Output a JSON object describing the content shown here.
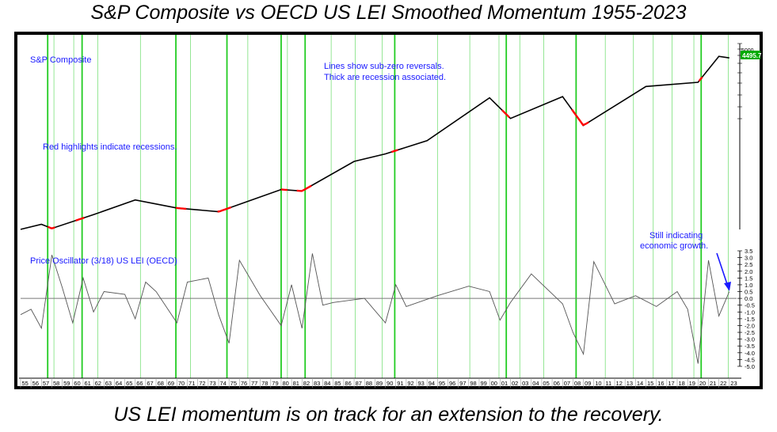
{
  "title": "S&P Composite vs OECD US LEI Smoothed Momentum 1955-2023",
  "caption": "US LEI momentum is on track for an extension to the recovery.",
  "annotations": {
    "top_label": "S&P Composite",
    "lines_note_1": "Lines show sub-zero reversals.",
    "lines_note_2": "Thick are recession associated.",
    "red_note": "Red highlights indicate recessions.",
    "osc_label": "Price Oscillator (3/18) US LEI (OECD)",
    "still_1": "Still indicating",
    "still_2": "economic growth.",
    "price_badge": "4495.7",
    "price_tick": "5000"
  },
  "colors": {
    "price": "#000000",
    "recession": "#ff0000",
    "oscillator": "#555555",
    "green_line": "#22cc22",
    "annotation": "#1a1aff",
    "badge": "#00aa00"
  },
  "chart_data": [
    {
      "type": "line",
      "title": "S&P Composite",
      "scale": "log",
      "x": [
        1955,
        1957,
        1958,
        1962,
        1966,
        1970,
        1974,
        1980,
        1982,
        1987,
        1990,
        1994,
        2000,
        2002,
        2007,
        2009,
        2015,
        2020,
        2022,
        2023
      ],
      "values": [
        40,
        46,
        41,
        60,
        90,
        72,
        65,
        120,
        115,
        260,
        320,
        460,
        1500,
        850,
        1550,
        700,
        2050,
        2300,
        4700,
        4495.7
      ],
      "recessions": [
        [
          1957.6,
          1958.3
        ],
        [
          1960.3,
          1961.1
        ],
        [
          1969.9,
          1970.9
        ],
        [
          1973.9,
          1975.2
        ],
        [
          1980.0,
          1980.6
        ],
        [
          1981.5,
          1982.9
        ],
        [
          1990.6,
          1991.2
        ],
        [
          2001.2,
          2001.9
        ],
        [
          2007.9,
          2009.5
        ],
        [
          2020.1,
          2020.4
        ]
      ],
      "last_value": "4495.7"
    },
    {
      "type": "line",
      "title": "Price Oscillator (3/18) US LEI (OECD)",
      "x": [
        1955,
        1956,
        1957,
        1958,
        1959,
        1960,
        1961,
        1962,
        1963,
        1965,
        1966,
        1967,
        1968,
        1970,
        1971,
        1973,
        1974,
        1975,
        1976,
        1978,
        1980,
        1981,
        1982,
        1983,
        1984,
        1985,
        1988,
        1990,
        1991,
        1992,
        1995,
        1998,
        2000,
        2001,
        2002,
        2004,
        2007,
        2008,
        2009,
        2010,
        2012,
        2014,
        2016,
        2018,
        2019,
        2020,
        2021,
        2022,
        2023
      ],
      "values": [
        -1.2,
        -0.8,
        -2.2,
        3.2,
        0.8,
        -1.8,
        1.5,
        -1.0,
        0.5,
        0.3,
        -1.5,
        1.2,
        0.5,
        -1.8,
        1.2,
        1.5,
        -1.2,
        -3.3,
        2.8,
        0.2,
        -2.0,
        1.0,
        -2.2,
        3.3,
        -0.5,
        -0.3,
        0.0,
        -1.8,
        1.0,
        -0.6,
        0.2,
        0.9,
        0.5,
        -1.6,
        -0.3,
        1.8,
        -0.4,
        -2.5,
        -4.1,
        2.7,
        -0.4,
        0.2,
        -0.6,
        0.5,
        -0.8,
        -4.8,
        2.8,
        -1.3,
        0.5
      ],
      "ylim": [
        -5.0,
        3.5
      ],
      "yticks": [
        "3.5",
        "3.0",
        "2.5",
        "2.0",
        "1.5",
        "1.0",
        "0.5",
        "0.0",
        "-0.5",
        "-1.0",
        "-1.5",
        "-2.0",
        "-2.5",
        "-3.0",
        "-3.5",
        "-4.0",
        "-4.5",
        "-5.0"
      ],
      "reversal_lines": [
        1957.6,
        1958.2,
        1960.1,
        1960.9,
        1962.4,
        1966.5,
        1969.9,
        1971.3,
        1974.8,
        1976.8,
        1980.0,
        1980.6,
        1982.3,
        1984.8,
        1987.1,
        1989.7,
        1990.9,
        1995.0,
        1998.1,
        2000.9,
        2001.6,
        2002.9,
        2005.2,
        2008.3,
        2011.1,
        2013.8,
        2015.7,
        2017.5,
        2019.6,
        2020.3,
        2022.9
      ],
      "thick_lines": [
        1957.6,
        1960.9,
        1969.9,
        1974.8,
        1980.0,
        1982.3,
        1990.9,
        2001.6,
        2008.3,
        2020.3
      ],
      "x_tick_labels": [
        "55",
        "56",
        "57",
        "58",
        "59",
        "60",
        "61",
        "62",
        "63",
        "64",
        "65",
        "66",
        "67",
        "68",
        "69",
        "70",
        "71",
        "72",
        "73",
        "74",
        "75",
        "76",
        "77",
        "78",
        "79",
        "80",
        "81",
        "82",
        "83",
        "84",
        "85",
        "86",
        "87",
        "88",
        "89",
        "90",
        "91",
        "92",
        "93",
        "94",
        "95",
        "96",
        "97",
        "98",
        "99",
        "00",
        "01",
        "02",
        "03",
        "04",
        "05",
        "06",
        "07",
        "08",
        "09",
        "10",
        "11",
        "12",
        "13",
        "14",
        "15",
        "16",
        "17",
        "18",
        "19",
        "20",
        "21",
        "22",
        "23"
      ]
    }
  ]
}
